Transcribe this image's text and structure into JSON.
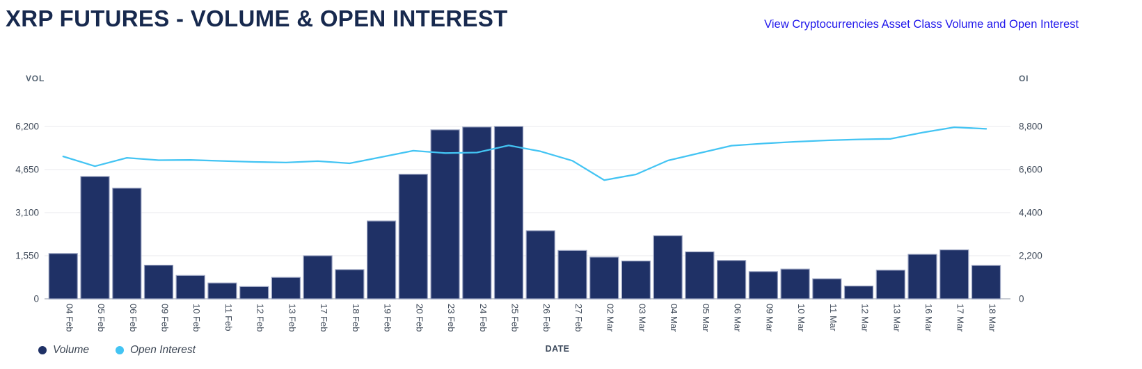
{
  "header": {
    "title": "XRP FUTURES - VOLUME & OPEN INTEREST",
    "link_label": "View Cryptocurrencies Asset Class Volume and Open Interest"
  },
  "chart_data": {
    "type": "bar+line",
    "title": "XRP FUTURES - VOLUME & OPEN INTEREST",
    "categories": [
      "04 Feb",
      "05 Feb",
      "06 Feb",
      "09 Feb",
      "10 Feb",
      "11 Feb",
      "12 Feb",
      "13 Feb",
      "17 Feb",
      "18 Feb",
      "19 Feb",
      "20 Feb",
      "23 Feb",
      "24 Feb",
      "25 Feb",
      "26 Feb",
      "27 Feb",
      "02 Mar",
      "03 Mar",
      "04 Mar",
      "05 Mar",
      "06 Mar",
      "09 Mar",
      "10 Mar",
      "11 Mar",
      "12 Mar",
      "13 Mar",
      "16 Mar",
      "17 Mar",
      "18 Mar"
    ],
    "series": [
      {
        "name": "Volume",
        "type": "bar",
        "axis": "left",
        "color": "#1f3166",
        "values": [
          1630,
          4400,
          3980,
          1210,
          840,
          570,
          440,
          770,
          1550,
          1050,
          2800,
          4480,
          6080,
          6180,
          6200,
          2450,
          1740,
          1500,
          1360,
          2270,
          1690,
          1380,
          980,
          1070,
          720,
          460,
          1030,
          1600,
          1760,
          1200
        ]
      },
      {
        "name": "Open Interest",
        "type": "line",
        "axis": "right",
        "color": "#43c4f3",
        "values": [
          7270,
          6770,
          7200,
          7080,
          7090,
          7040,
          6990,
          6960,
          7030,
          6920,
          7240,
          7560,
          7440,
          7470,
          7830,
          7530,
          7050,
          6060,
          6350,
          7060,
          7440,
          7820,
          7930,
          8020,
          8090,
          8140,
          8170,
          8490,
          8760,
          8680
        ]
      }
    ],
    "left_axis": {
      "label": "VOL",
      "max": 6200,
      "tick_values": [
        0,
        1550,
        3100,
        4650,
        6200
      ],
      "tick_labels": [
        "0",
        "1,550",
        "3,100",
        "4,650",
        "6,200"
      ]
    },
    "right_axis": {
      "label": "OI",
      "max": 8800,
      "tick_values": [
        0,
        2200,
        4400,
        6600,
        8800
      ],
      "tick_labels": [
        "0",
        "2,200",
        "4,400",
        "6,600",
        "8,800"
      ]
    },
    "xlabel": "DATE",
    "grid": true,
    "legend_position": "bottom-left"
  },
  "colors": {
    "bar_fill": "#1f3166",
    "bar_stroke": "#9ba4c2",
    "line": "#43c4f3",
    "title_text": "#17294e",
    "link_text": "#1f16eb",
    "axis_text": "#3f4a59",
    "axis_caption_text": "#51606f",
    "gridline": "#e9eaee",
    "axis_line": "#c9cdd4"
  }
}
